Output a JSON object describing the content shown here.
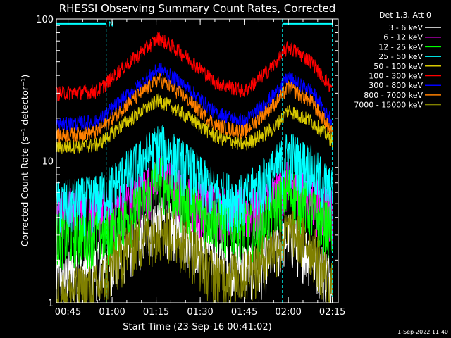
{
  "chart_data": {
    "type": "line",
    "title": "RHESSI Observing Summary Count Rates, Corrected",
    "xlabel": "Start Time (23-Sep-16 00:41:02)",
    "ylabel": "Corrected Count Rate (s⁻¹ detector⁻¹)",
    "y_scale": "log",
    "ylim": [
      1,
      100
    ],
    "y_ticks": [
      "1",
      "10",
      "100"
    ],
    "x_start": "00:41:02",
    "x_end": "02:17:00",
    "x_ticks": [
      "00:45",
      "01:00",
      "01:15",
      "01:30",
      "01:45",
      "02:00",
      "02:15"
    ],
    "legend_header": "Det 1,3, Att 0",
    "legend_placement": "right",
    "series": [
      {
        "name": "3 - 6 keV",
        "color": "#ffffff",
        "points": [
          [
            "00:41",
            1.5
          ],
          [
            "01:00",
            2.0
          ],
          [
            "01:10",
            3.0
          ],
          [
            "01:16",
            4.0
          ],
          [
            "01:25",
            3.0
          ],
          [
            "01:40",
            2.0
          ],
          [
            "01:50",
            1.8
          ],
          [
            "02:00",
            3.0
          ],
          [
            "02:08",
            2.2
          ],
          [
            "02:15",
            1.5
          ]
        ]
      },
      {
        "name": "6 - 12 keV",
        "color": "#ff00ff",
        "points": [
          [
            "00:41",
            4.5
          ],
          [
            "01:00",
            4.5
          ],
          [
            "01:10",
            6.0
          ],
          [
            "01:16",
            8.0
          ],
          [
            "01:25",
            5.5
          ],
          [
            "01:40",
            4.5
          ],
          [
            "01:50",
            4.5
          ],
          [
            "02:00",
            7.0
          ],
          [
            "02:08",
            5.5
          ],
          [
            "02:15",
            4.5
          ]
        ]
      },
      {
        "name": "12 - 25 keV",
        "color": "#00ff00",
        "points": [
          [
            "00:41",
            3.0
          ],
          [
            "01:00",
            3.2
          ],
          [
            "01:10",
            5.0
          ],
          [
            "01:16",
            8.0
          ],
          [
            "01:25",
            5.0
          ],
          [
            "01:40",
            3.5
          ],
          [
            "01:50",
            3.5
          ],
          [
            "02:00",
            6.5
          ],
          [
            "02:08",
            4.5
          ],
          [
            "02:15",
            3.5
          ]
        ]
      },
      {
        "name": "25 - 50 keV",
        "color": "#00ffff",
        "points": [
          [
            "00:41",
            5.0
          ],
          [
            "00:55",
            5.5
          ],
          [
            "01:10",
            10.0
          ],
          [
            "01:16",
            13.0
          ],
          [
            "01:25",
            9.5
          ],
          [
            "01:35",
            6.0
          ],
          [
            "01:45",
            5.5
          ],
          [
            "01:55",
            8.5
          ],
          [
            "02:00",
            11.5
          ],
          [
            "02:08",
            9.0
          ],
          [
            "02:15",
            6.0
          ]
        ]
      },
      {
        "name": "50 - 100 keV",
        "color": "#d7c800",
        "points": [
          [
            "00:41",
            12.5
          ],
          [
            "00:55",
            13.0
          ],
          [
            "01:05",
            19.0
          ],
          [
            "01:16",
            27.0
          ],
          [
            "01:25",
            21.0
          ],
          [
            "01:35",
            15.0
          ],
          [
            "01:45",
            13.0
          ],
          [
            "01:55",
            17.0
          ],
          [
            "02:00",
            23.0
          ],
          [
            "02:08",
            19.0
          ],
          [
            "02:15",
            14.0
          ]
        ]
      },
      {
        "name": "100 - 300 keV",
        "color": "#ff0000",
        "points": [
          [
            "00:41",
            30.0
          ],
          [
            "00:55",
            31.0
          ],
          [
            "01:05",
            48.0
          ],
          [
            "01:16",
            74.0
          ],
          [
            "01:25",
            55.0
          ],
          [
            "01:35",
            36.0
          ],
          [
            "01:45",
            31.0
          ],
          [
            "01:55",
            47.0
          ],
          [
            "02:00",
            64.0
          ],
          [
            "02:08",
            50.0
          ],
          [
            "02:15",
            32.0
          ]
        ]
      },
      {
        "name": "300 - 800 keV",
        "color": "#0000ff",
        "points": [
          [
            "00:41",
            18.0
          ],
          [
            "00:55",
            19.0
          ],
          [
            "01:05",
            29.0
          ],
          [
            "01:16",
            45.0
          ],
          [
            "01:25",
            34.0
          ],
          [
            "01:35",
            22.0
          ],
          [
            "01:45",
            19.0
          ],
          [
            "01:55",
            29.0
          ],
          [
            "02:00",
            39.0
          ],
          [
            "02:08",
            31.0
          ],
          [
            "02:15",
            19.0
          ]
        ]
      },
      {
        "name": "800 - 7000 keV",
        "color": "#ff8000",
        "points": [
          [
            "00:41",
            15.0
          ],
          [
            "00:55",
            16.0
          ],
          [
            "01:05",
            25.0
          ],
          [
            "01:16",
            38.0
          ],
          [
            "01:25",
            28.0
          ],
          [
            "01:35",
            18.0
          ],
          [
            "01:45",
            16.0
          ],
          [
            "01:55",
            25.0
          ],
          [
            "02:00",
            33.0
          ],
          [
            "02:08",
            26.0
          ],
          [
            "02:15",
            16.0
          ]
        ]
      },
      {
        "name": "7000 - 15000 keV",
        "color": "#808000",
        "points": [
          [
            "00:41",
            1.2
          ],
          [
            "00:55",
            1.3
          ],
          [
            "01:05",
            2.5
          ],
          [
            "01:16",
            3.5
          ],
          [
            "01:25",
            2.8
          ],
          [
            "01:35",
            1.6
          ],
          [
            "01:45",
            1.6
          ],
          [
            "01:55",
            2.5
          ],
          [
            "02:00",
            3.2
          ],
          [
            "02:08",
            2.6
          ],
          [
            "02:15",
            1.3
          ]
        ]
      }
    ],
    "annotations": [
      {
        "type": "bar",
        "color": "#00ffff",
        "from": "00:41",
        "to": "00:58",
        "value": 93,
        "text": "N"
      },
      {
        "type": "bar",
        "color": "#00ffff",
        "from": "01:58",
        "to": "02:15",
        "value": 93,
        "text": ""
      },
      {
        "type": "vline",
        "color": "#00ffff",
        "x": "00:58"
      },
      {
        "type": "vline",
        "color": "#00ffff",
        "x": "01:58"
      },
      {
        "type": "vline",
        "color": "#00ffff",
        "x": "02:15"
      }
    ],
    "grid": false
  },
  "footer": {
    "timestamp": "1-Sep-2022 11:40"
  }
}
